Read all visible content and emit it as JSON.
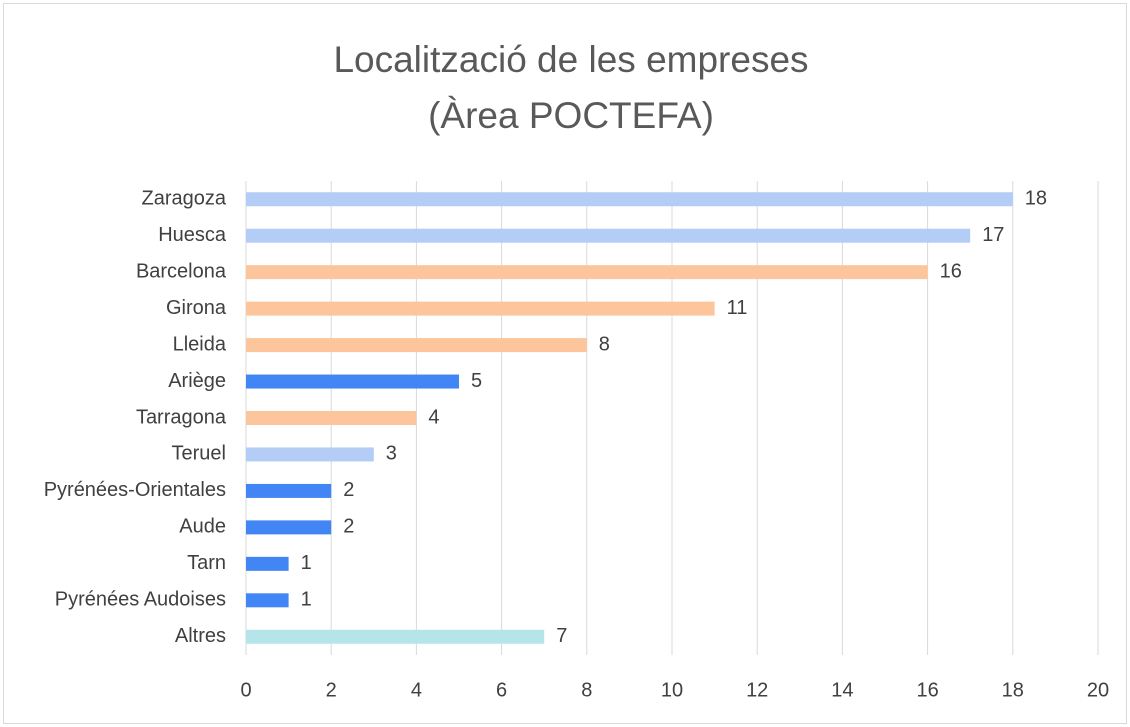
{
  "chart_data": {
    "type": "bar",
    "orientation": "horizontal",
    "title": [
      "Localització de les empreses",
      "(Àrea POCTEFA)"
    ],
    "categories": [
      "Zaragoza",
      "Huesca",
      "Barcelona",
      "Girona",
      "Lleida",
      "Ariège",
      "Tarragona",
      "Teruel",
      "Pyrénées-Orientales",
      "Aude",
      "Tarn",
      "Pyrénées Audoises",
      "Altres"
    ],
    "values": [
      18,
      17,
      16,
      11,
      8,
      5,
      4,
      3,
      2,
      2,
      1,
      1,
      7
    ],
    "colors": [
      "#b4cdf7",
      "#b4cdf7",
      "#fcc59c",
      "#fcc59c",
      "#fcc59c",
      "#4285f4",
      "#fcc59c",
      "#b4cdf7",
      "#4285f4",
      "#4285f4",
      "#4285f4",
      "#4285f4",
      "#b5e5e8"
    ],
    "xlim": [
      0,
      20
    ],
    "xticks": [
      0,
      2,
      4,
      6,
      8,
      10,
      12,
      14,
      16,
      18,
      20
    ],
    "grid": true
  }
}
